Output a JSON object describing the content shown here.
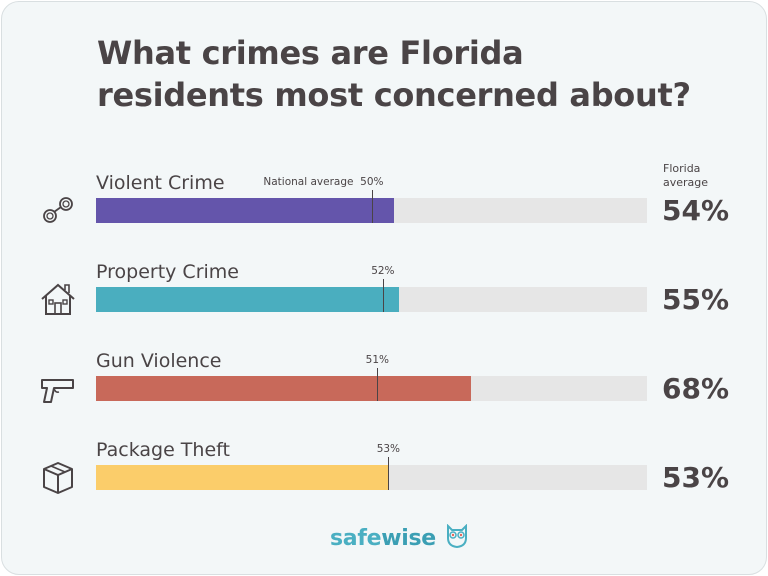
{
  "title_line1": "What crimes are Florida",
  "title_line2": "residents most concerned about?",
  "florida_header": [
    "Florida",
    "average"
  ],
  "national_average_label": "National average",
  "chart_data": {
    "type": "bar",
    "orientation": "horizontal",
    "title": "What crimes are Florida residents most concerned about?",
    "xlim": [
      0,
      100
    ],
    "unit": "%",
    "categories": [
      "Violent Crime",
      "Property Crime",
      "Gun Violence",
      "Package Theft"
    ],
    "series": [
      {
        "name": "Florida average",
        "values": [
          54,
          55,
          68,
          53
        ]
      },
      {
        "name": "National average",
        "values": [
          50,
          52,
          51,
          53
        ]
      }
    ],
    "florida_labels": [
      "54%",
      "55%",
      "68%",
      "53%"
    ],
    "national_labels": [
      "50%",
      "52%",
      "51%",
      "53%"
    ],
    "colors": [
      "#6455ab",
      "#4aaebf",
      "#c8695a",
      "#fbcd6a"
    ],
    "track_color": "#e6e6e6",
    "icons": [
      "handcuffs-icon",
      "house-icon",
      "gun-icon",
      "package-icon"
    ]
  },
  "logo": {
    "part1": "safe",
    "part2": "wise",
    "icon": "owl-icon"
  }
}
